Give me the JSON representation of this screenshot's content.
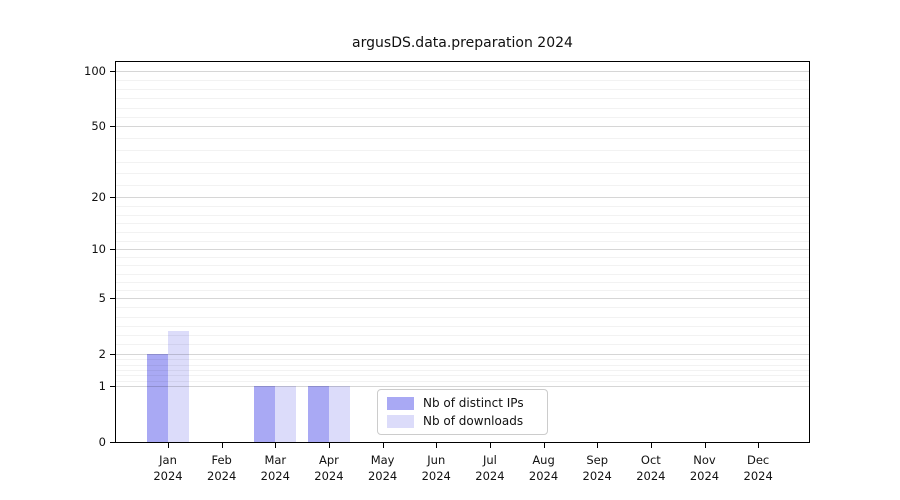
{
  "chart_data": {
    "type": "bar",
    "title": "argusDS.data.preparation 2024",
    "categories": [
      "Jan 2024",
      "Feb 2024",
      "Mar 2024",
      "Apr 2024",
      "May 2024",
      "Jun 2024",
      "Jul 2024",
      "Aug 2024",
      "Sep 2024",
      "Oct 2024",
      "Nov 2024",
      "Dec 2024"
    ],
    "x_tick_months": [
      "Jan",
      "Feb",
      "Mar",
      "Apr",
      "May",
      "Jun",
      "Jul",
      "Aug",
      "Sep",
      "Oct",
      "Nov",
      "Dec"
    ],
    "x_tick_year": "2024",
    "series": [
      {
        "name": "Nb of distinct IPs",
        "color": "#a9a9f4",
        "values": [
          2,
          0,
          1,
          1,
          0,
          0,
          0,
          0,
          0,
          0,
          0,
          0
        ]
      },
      {
        "name": "Nb of downloads",
        "color": "#dcdcfa",
        "values": [
          3,
          0,
          1,
          1,
          0,
          0,
          0,
          0,
          0,
          0,
          0,
          0
        ]
      }
    ],
    "y_ticks": [
      0,
      1,
      2,
      5,
      10,
      20,
      50,
      100
    ],
    "y_scale": "log1p",
    "ylim": [
      0,
      113
    ],
    "xlabel": "",
    "ylabel": "",
    "grid": true,
    "legend_position": "lower-center",
    "colors": {
      "axis": "#000000",
      "grid_major": "#d6d6d6",
      "grid_minor": "#f2f2f2",
      "legend_border": "#cccccc",
      "background": "#ffffff"
    }
  }
}
